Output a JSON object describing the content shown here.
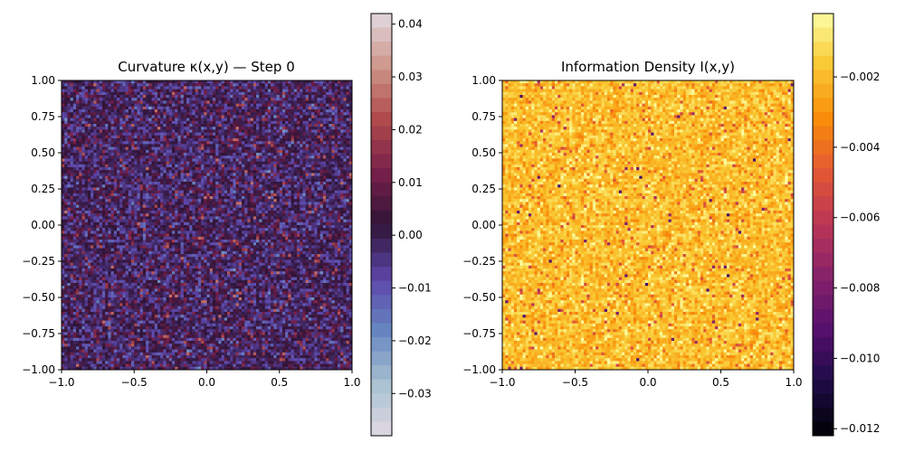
{
  "chart_data": [
    {
      "type": "heatmap",
      "title": "Curvature κ(x,y) — Step 0",
      "colormap": "twilight",
      "x_ticks": [
        "−1.0",
        "−0.5",
        "0.0",
        "0.5",
        "1.0"
      ],
      "y_ticks": [
        "1.00",
        "0.75",
        "0.50",
        "0.25",
        "0.00",
        "−0.25",
        "−0.50",
        "−0.75",
        "−1.00"
      ],
      "xlim": [
        -1.0,
        1.0
      ],
      "ylim": [
        -1.0,
        1.0
      ],
      "value_range": [
        -0.038,
        0.042
      ],
      "colorbar_ticks": [
        "0.04",
        "0.03",
        "0.02",
        "0.01",
        "0.00",
        "−0.01",
        "−0.02",
        "−0.03"
      ],
      "colorbar_tick_values": [
        0.04,
        0.03,
        0.02,
        0.01,
        0.0,
        -0.01,
        -0.02,
        -0.03
      ]
    },
    {
      "type": "heatmap",
      "title": "Information Density I(x,y)",
      "colormap": "inferno",
      "x_ticks": [
        "−1.0",
        "−0.5",
        "0.0",
        "0.5",
        "1.0"
      ],
      "y_ticks": [
        "1.00",
        "0.75",
        "0.50",
        "0.25",
        "0.00",
        "−0.25",
        "−0.50",
        "−0.75",
        "−1.00"
      ],
      "xlim": [
        -1.0,
        1.0
      ],
      "ylim": [
        -1.0,
        1.0
      ],
      "value_range": [
        -0.0122,
        -0.0002
      ],
      "colorbar_ticks": [
        "−0.002",
        "−0.004",
        "−0.006",
        "−0.008",
        "−0.010",
        "−0.012"
      ],
      "colorbar_tick_values": [
        -0.002,
        -0.004,
        -0.006,
        -0.008,
        -0.01,
        -0.012
      ]
    }
  ]
}
